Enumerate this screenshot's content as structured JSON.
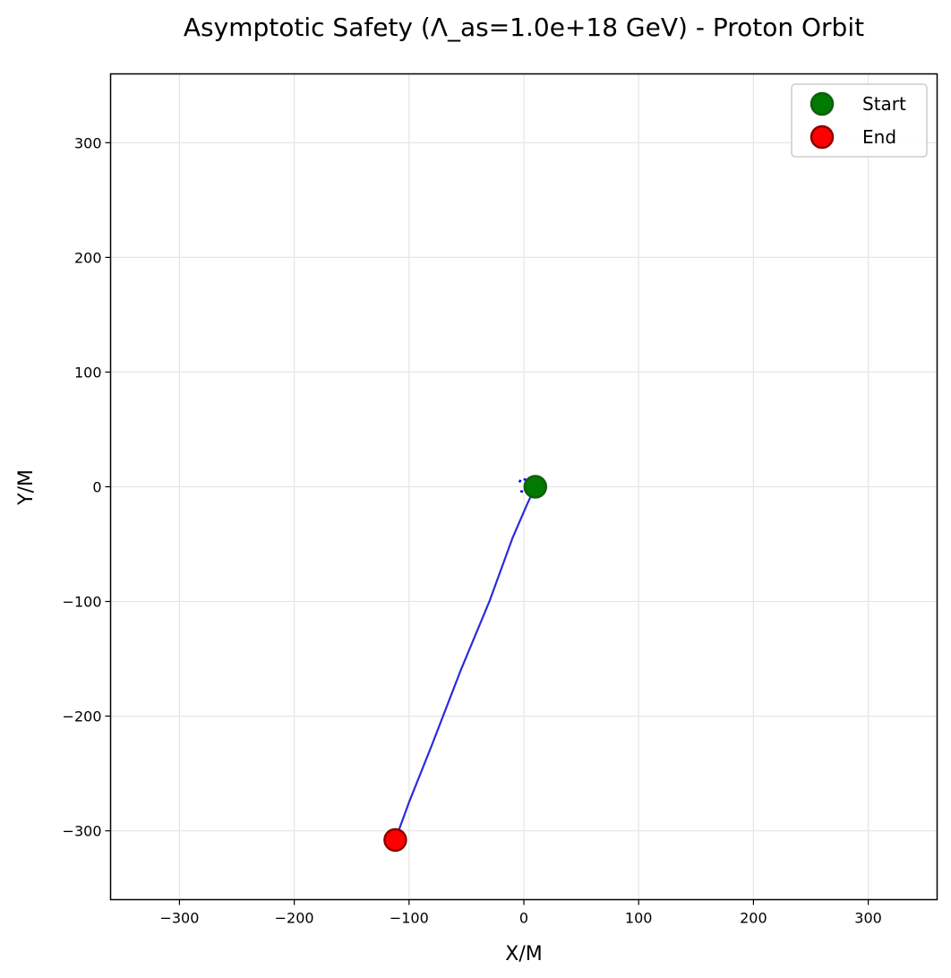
{
  "chart_data": {
    "type": "line",
    "title": "Asymptotic Safety (Λ_as=1.0e+18 GeV) - Proton Orbit",
    "xlabel": "X/M",
    "ylabel": "Y/M",
    "xlim": [
      -360,
      360
    ],
    "ylim": [
      -360,
      360
    ],
    "xticks": [
      -300,
      -200,
      -100,
      0,
      100,
      200,
      300
    ],
    "yticks": [
      -300,
      -200,
      -100,
      0,
      100,
      200,
      300
    ],
    "grid": true,
    "legend_position": "top-right",
    "series": [
      {
        "color": "#2b2bdd",
        "x": [
          10,
          3,
          -10,
          -30,
          -55,
          -80,
          -100,
          -112
        ],
        "y": [
          0,
          -15,
          -45,
          -100,
          -160,
          -225,
          -275,
          -308
        ]
      }
    ],
    "inner_loop": {
      "color": "#0000ff",
      "x": [
        -4,
        -2,
        2,
        6,
        8,
        6,
        2,
        -2,
        -4
      ],
      "y": [
        4,
        7,
        6,
        3,
        0,
        -3,
        -5,
        -4,
        -4
      ]
    },
    "markers": [
      {
        "label": "Start",
        "x": 10,
        "y": 0,
        "color": "#007a00",
        "edge": "#0f5f0f"
      },
      {
        "label": "End",
        "x": -112,
        "y": -308,
        "color": "#ff0000",
        "edge": "#8b0000"
      }
    ]
  }
}
